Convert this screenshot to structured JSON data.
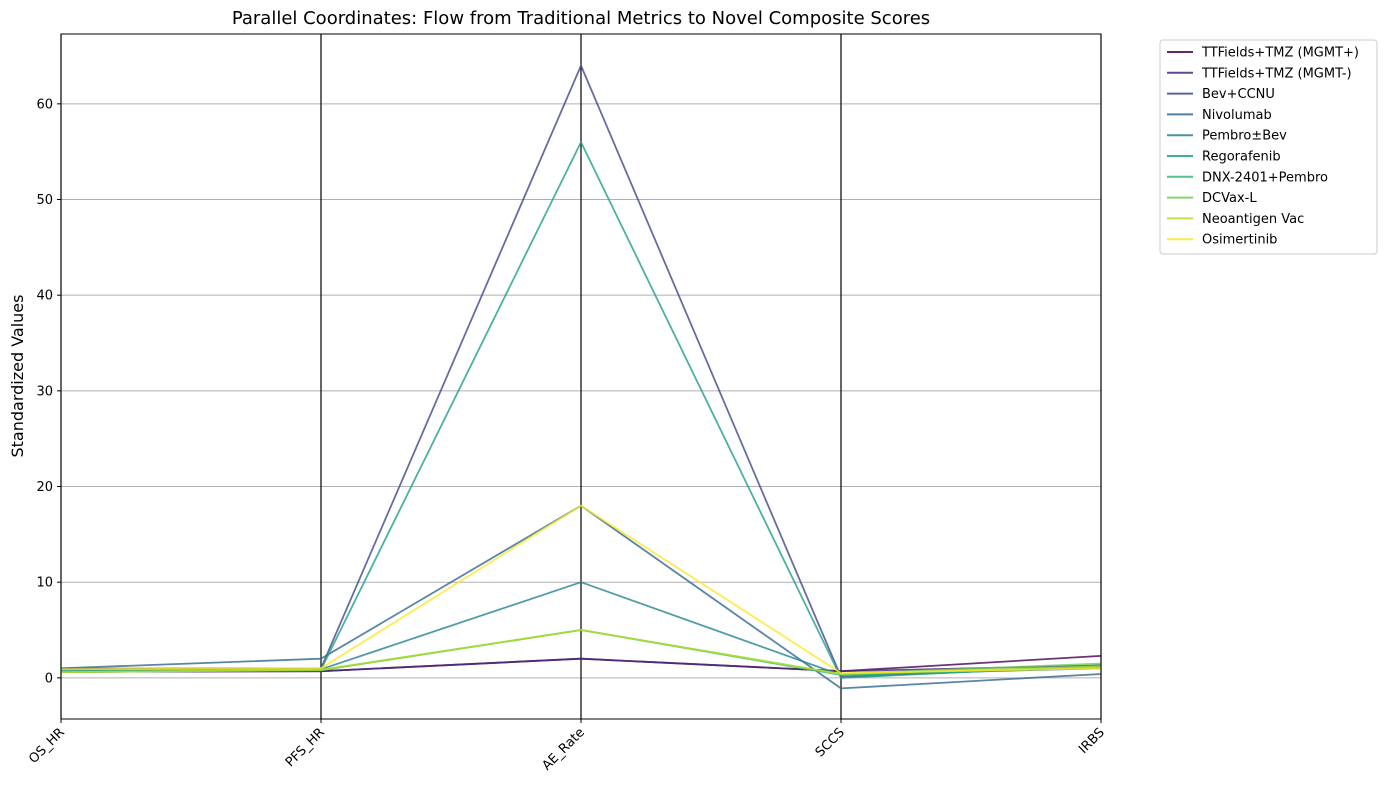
{
  "chart_data": {
    "type": "line",
    "title": "Parallel Coordinates: Flow from Traditional Metrics to Novel Composite Scores",
    "xlabel": "",
    "ylabel": "Standardized Values",
    "categories": [
      "OS_HR",
      "PFS_HR",
      "AE_Rate",
      "SCCS",
      "IRBS"
    ],
    "ylim": [
      -4.3,
      67.3
    ],
    "yticks": [
      0,
      10,
      20,
      30,
      40,
      50,
      60
    ],
    "grid": "y",
    "legend_position": "outside-top-right",
    "series": [
      {
        "name": "TTFields+TMZ (MGMT+)",
        "color": "#440154",
        "values": [
          0.63,
          0.7,
          2.0,
          0.7,
          2.3
        ]
      },
      {
        "name": "TTFields+TMZ (MGMT-)",
        "color": "#482878",
        "values": [
          0.63,
          0.7,
          2.0,
          0.7,
          1.3
        ]
      },
      {
        "name": "Bev+CCNU",
        "color": "#3e4989",
        "values": [
          0.95,
          1.0,
          64.0,
          0.1,
          1.2
        ]
      },
      {
        "name": "Nivolumab",
        "color": "#31688e",
        "values": [
          1.0,
          2.0,
          18.0,
          -1.1,
          0.4
        ]
      },
      {
        "name": "Pembro±Bev",
        "color": "#26828e",
        "values": [
          0.8,
          0.9,
          10.0,
          0.3,
          1.0
        ]
      },
      {
        "name": "Regorafenib",
        "color": "#1f9e89",
        "values": [
          0.75,
          0.85,
          56.0,
          0.0,
          1.3
        ]
      },
      {
        "name": "DNX-2401+Pembro",
        "color": "#35b779",
        "values": [
          0.6,
          0.8,
          5.0,
          0.3,
          1.1
        ]
      },
      {
        "name": "DCVax-L",
        "color": "#6ece58",
        "values": [
          0.6,
          0.8,
          5.0,
          0.4,
          1.5
        ]
      },
      {
        "name": "Neoantigen Vac",
        "color": "#b5de2b",
        "values": [
          0.6,
          0.85,
          5.0,
          0.4,
          1.2
        ]
      },
      {
        "name": "Osimertinib",
        "color": "#fde725",
        "values": [
          0.9,
          1.0,
          18.0,
          0.5,
          1.0
        ]
      }
    ]
  }
}
